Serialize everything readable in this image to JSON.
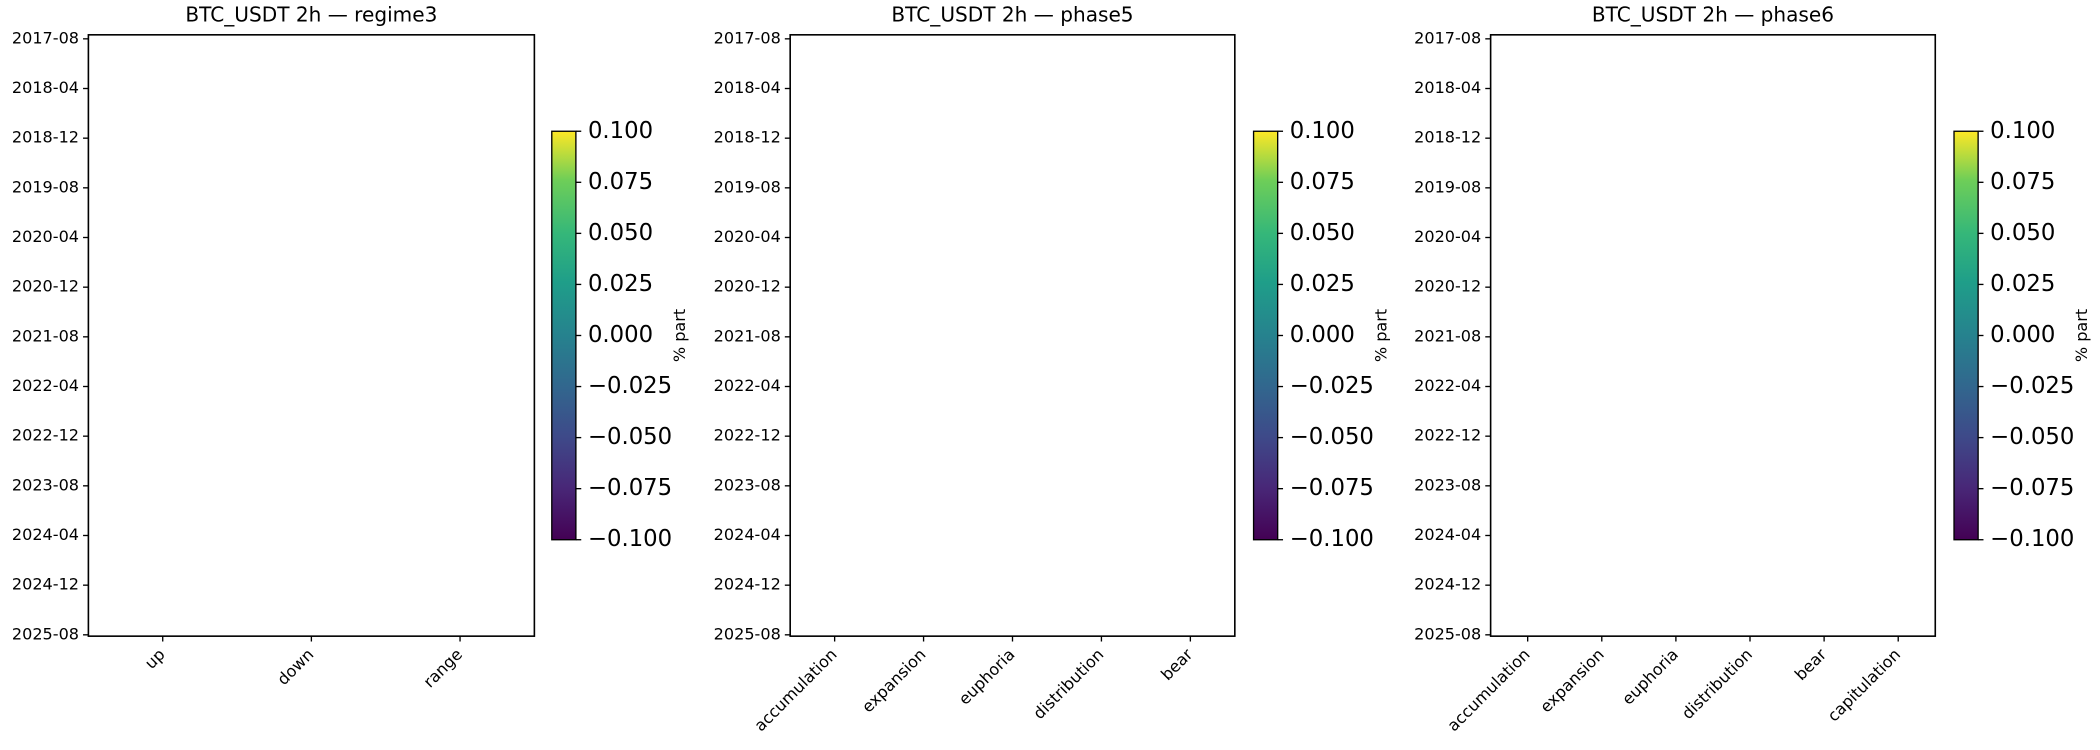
{
  "chart_data": [
    {
      "type": "heatmap",
      "title": "BTC_USDT 2h — regime3",
      "categories": [
        "up",
        "down",
        "range"
      ],
      "y_categories": [
        "2017-08",
        "2018-04",
        "2018-12",
        "2019-08",
        "2020-04",
        "2020-12",
        "2021-08",
        "2022-04",
        "2022-12",
        "2023-08",
        "2024-04",
        "2024-12",
        "2025-08"
      ],
      "colorbar": {
        "label": "% part",
        "colormap": "viridis",
        "lim": [
          -0.1,
          0.1
        ],
        "ticks": [
          {
            "value": 0.1,
            "label": "0.100"
          },
          {
            "value": 0.075,
            "label": "0.075"
          },
          {
            "value": 0.05,
            "label": "0.050"
          },
          {
            "value": 0.025,
            "label": "0.025"
          },
          {
            "value": 0,
            "label": "0.000"
          },
          {
            "value": -0.025,
            "label": "−0.025"
          },
          {
            "value": -0.05,
            "label": "−0.050"
          },
          {
            "value": -0.075,
            "label": "−0.075"
          },
          {
            "value": -0.1,
            "label": "−0.100"
          }
        ]
      }
    },
    {
      "type": "heatmap",
      "title": "BTC_USDT 2h — phase5",
      "categories": [
        "accumulation",
        "expansion",
        "euphoria",
        "distribution",
        "bear"
      ],
      "y_categories": [
        "2017-08",
        "2018-04",
        "2018-12",
        "2019-08",
        "2020-04",
        "2020-12",
        "2021-08",
        "2022-04",
        "2022-12",
        "2023-08",
        "2024-04",
        "2024-12",
        "2025-08"
      ],
      "colorbar": {
        "label": "% part",
        "colormap": "viridis",
        "lim": [
          -0.1,
          0.1
        ],
        "ticks": [
          {
            "value": 0.1,
            "label": "0.100"
          },
          {
            "value": 0.075,
            "label": "0.075"
          },
          {
            "value": 0.05,
            "label": "0.050"
          },
          {
            "value": 0.025,
            "label": "0.025"
          },
          {
            "value": 0,
            "label": "0.000"
          },
          {
            "value": -0.025,
            "label": "−0.025"
          },
          {
            "value": -0.05,
            "label": "−0.050"
          },
          {
            "value": -0.075,
            "label": "−0.075"
          },
          {
            "value": -0.1,
            "label": "−0.100"
          }
        ]
      }
    },
    {
      "type": "heatmap",
      "title": "BTC_USDT 2h — phase6",
      "categories": [
        "accumulation",
        "expansion",
        "euphoria",
        "distribution",
        "bear",
        "capitulation"
      ],
      "y_categories": [
        "2017-08",
        "2018-04",
        "2018-12",
        "2019-08",
        "2020-04",
        "2020-12",
        "2021-08",
        "2022-04",
        "2022-12",
        "2023-08",
        "2024-04",
        "2024-12",
        "2025-08"
      ],
      "colorbar": {
        "label": "% part",
        "colormap": "viridis",
        "lim": [
          -0.1,
          0.1
        ],
        "ticks": [
          {
            "value": 0.1,
            "label": "0.100"
          },
          {
            "value": 0.075,
            "label": "0.075"
          },
          {
            "value": 0.05,
            "label": "0.050"
          },
          {
            "value": 0.025,
            "label": "0.025"
          },
          {
            "value": 0,
            "label": "0.000"
          },
          {
            "value": -0.025,
            "label": "−0.025"
          },
          {
            "value": -0.05,
            "label": "−0.050"
          },
          {
            "value": -0.075,
            "label": "−0.075"
          },
          {
            "value": -0.1,
            "label": "−0.100"
          }
        ]
      }
    }
  ]
}
